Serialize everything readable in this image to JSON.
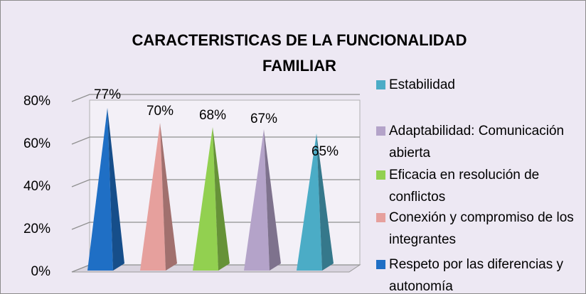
{
  "chart_data": {
    "type": "pyramid",
    "title": "CARACTERISTICAS DE LA FUNCIONALIDAD FAMILIAR",
    "series": [
      {
        "name": "Respeto por las diferencias y autonomía",
        "color": "#1f6fc5",
        "values": [
          77
        ],
        "value_labels": [
          "77%"
        ]
      },
      {
        "name": "Conexión y compromiso de los integrantes",
        "color": "#e6a09d",
        "values": [
          70
        ],
        "value_labels": [
          "70%"
        ]
      },
      {
        "name": "Eficacia en resolución de conflictos",
        "color": "#92d050",
        "values": [
          68
        ],
        "value_labels": [
          "68%"
        ]
      },
      {
        "name": "Adaptabilidad: Comunicación abierta",
        "color": "#b4a3c9",
        "values": [
          67
        ],
        "value_labels": [
          "67%"
        ]
      },
      {
        "name": "Estabilidad",
        "color": "#4bacc6",
        "values": [
          65
        ],
        "value_labels": [
          "65%"
        ]
      }
    ],
    "ylim": [
      0,
      80
    ],
    "yticks": [
      {
        "value": 0,
        "label": "0%"
      },
      {
        "value": 20,
        "label": "20%"
      },
      {
        "value": 40,
        "label": "40%"
      },
      {
        "value": 60,
        "label": "60%"
      },
      {
        "value": 80,
        "label": "80%"
      }
    ],
    "grid": true,
    "legend": "right"
  }
}
